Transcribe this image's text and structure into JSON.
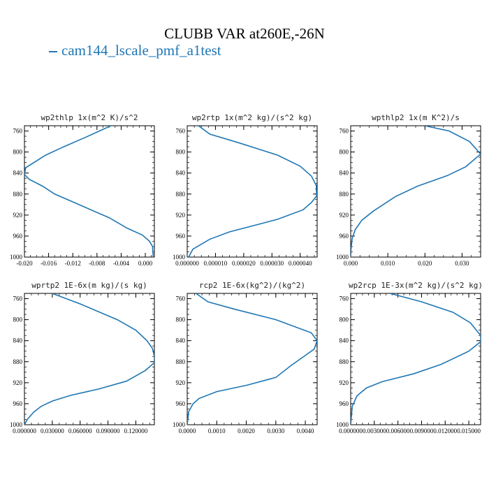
{
  "figure": {
    "title": "CLUBB VAR at260E,-26N",
    "legend_label": "cam144_lscale_pmf_a1test",
    "line_color": "#2077b4"
  },
  "chart_data": [
    {
      "type": "line",
      "title": "wp2thlp  1x(m^2 K)/s^2",
      "xlim": [
        -0.02,
        0.0015
      ],
      "ylim": [
        1000,
        750
      ],
      "xticks": [
        -0.02,
        -0.016,
        -0.012,
        -0.008,
        -0.004,
        0.0
      ],
      "xtick_labels": [
        "-0.020",
        "-0.016",
        "-0.012",
        "-0.008",
        "-0.004",
        "0.000"
      ],
      "yticks": [
        760,
        800,
        840,
        880,
        920,
        960,
        1000
      ],
      "ytick_labels": [
        "760",
        "800",
        "840",
        "880",
        "920",
        "960",
        "1000"
      ],
      "x": [
        -0.0057,
        -0.0095,
        -0.0135,
        -0.0165,
        -0.0198,
        -0.02,
        -0.0192,
        -0.017,
        -0.015,
        -0.012,
        -0.006,
        -0.003,
        -0.0005,
        0.0007,
        0.0012,
        0.0013
      ],
      "y": [
        750,
        770,
        790,
        806,
        830,
        843,
        852,
        865,
        880,
        895,
        925,
        945,
        958,
        970,
        980,
        1000
      ]
    },
    {
      "type": "line",
      "title": "wp2rtp  1x(m^2 kg)/(s^2 kg)",
      "xlim": [
        0.0,
        4.6e-05
      ],
      "ylim": [
        1000,
        750
      ],
      "xticks": [
        0.0,
        1e-05,
        2e-05,
        3e-05,
        4e-05
      ],
      "xtick_labels": [
        "0.000000",
        "0.000010",
        "0.000020",
        "0.000030",
        "0.000040"
      ],
      "yticks": [
        760,
        800,
        840,
        880,
        920,
        960,
        1000
      ],
      "ytick_labels": [
        "760",
        "800",
        "840",
        "880",
        "920",
        "960",
        "1000"
      ],
      "x": [
        4e-06,
        8e-06,
        1.8e-05,
        3.2e-05,
        4e-05,
        4.4e-05,
        4.57e-05,
        4.58e-05,
        4.4e-05,
        4.1e-05,
        3.2e-05,
        2.5e-05,
        1.5e-05,
        8e-06,
        2e-06,
        5e-07
      ],
      "y": [
        750,
        766,
        782,
        806,
        827,
        846,
        864,
        884,
        896,
        910,
        928,
        938,
        952,
        966,
        985,
        1000
      ]
    },
    {
      "type": "line",
      "title": "wpthlp2  1x(m K^2)/s",
      "xlim": [
        0.0,
        0.035
      ],
      "ylim": [
        1000,
        750
      ],
      "xticks": [
        0.0,
        0.01,
        0.02,
        0.03
      ],
      "xtick_labels": [
        "0.000",
        "0.010",
        "0.020",
        "0.030"
      ],
      "yticks": [
        760,
        800,
        840,
        880,
        920,
        960,
        1000
      ],
      "ytick_labels": [
        "760",
        "800",
        "840",
        "880",
        "920",
        "960",
        "1000"
      ],
      "x": [
        0.02,
        0.0265,
        0.032,
        0.035,
        0.031,
        0.026,
        0.018,
        0.012,
        0.006,
        0.003,
        0.0012,
        0.0004,
        0.0001,
        0.0
      ],
      "y": [
        750,
        760,
        780,
        804,
        828,
        845,
        865,
        885,
        913,
        930,
        948,
        965,
        985,
        1000
      ]
    },
    {
      "type": "line",
      "title": "wprtp2  1E-6x(m kg)/(s kg)",
      "xlim": [
        0.0,
        0.14
      ],
      "ylim": [
        1000,
        750
      ],
      "xticks": [
        0.0,
        0.03,
        0.06,
        0.09,
        0.12
      ],
      "xtick_labels": [
        "0.000000",
        "0.030000",
        "0.060000",
        "0.090000",
        "0.120000"
      ],
      "yticks": [
        760,
        800,
        840,
        880,
        920,
        960,
        1000
      ],
      "ytick_labels": [
        "760",
        "800",
        "840",
        "880",
        "920",
        "960",
        "1000"
      ],
      "x": [
        0.03,
        0.06,
        0.1,
        0.12,
        0.132,
        0.138,
        0.14,
        0.14,
        0.13,
        0.11,
        0.08,
        0.05,
        0.03,
        0.018,
        0.01,
        0.003,
        0.0
      ],
      "y": [
        750,
        770,
        800,
        820,
        840,
        855,
        870,
        882,
        897,
        917,
        932,
        944,
        955,
        965,
        976,
        990,
        1000
      ]
    },
    {
      "type": "line",
      "title": "rcp2  1E-6x(kg^2)/(kg^2)",
      "xlim": [
        0.0,
        0.0044
      ],
      "ylim": [
        1000,
        750
      ],
      "xticks": [
        0.0,
        0.001,
        0.002,
        0.003,
        0.004
      ],
      "xtick_labels": [
        "0.0000",
        "0.0010",
        "0.0020",
        "0.0030",
        "0.0040"
      ],
      "yticks": [
        760,
        800,
        840,
        880,
        920,
        960,
        1000
      ],
      "ytick_labels": [
        "760",
        "800",
        "840",
        "880",
        "920",
        "960",
        "1000"
      ],
      "x": [
        0.0003,
        0.0007,
        0.0016,
        0.003,
        0.0042,
        0.0044,
        0.0043,
        0.004,
        0.0035,
        0.003,
        0.002,
        0.001,
        0.0004,
        0.0002,
        5e-05,
        0.0
      ],
      "y": [
        750,
        766,
        780,
        800,
        825,
        840,
        856,
        868,
        888,
        910,
        925,
        937,
        950,
        960,
        975,
        1000
      ]
    },
    {
      "type": "line",
      "title": "wp2rcp  1E-3x(m^2 kg)/(s^2 kg)",
      "xlim": [
        0.0,
        0.0165
      ],
      "ylim": [
        1000,
        750
      ],
      "xticks": [
        0.0,
        0.003,
        0.006,
        0.009,
        0.012,
        0.015
      ],
      "xtick_labels": [
        "0.000000",
        "0.003000",
        "0.006000",
        "0.009000",
        "0.012000",
        "0.015000"
      ],
      "yticks": [
        760,
        800,
        840,
        880,
        920,
        960,
        1000
      ],
      "ytick_labels": [
        "760",
        "800",
        "840",
        "880",
        "920",
        "960",
        "1000"
      ],
      "x": [
        0.005,
        0.009,
        0.013,
        0.0152,
        0.0165,
        0.0165,
        0.015,
        0.0115,
        0.008,
        0.004,
        0.002,
        0.0008,
        0.0002,
        0.0
      ],
      "y": [
        750,
        766,
        786,
        806,
        830,
        842,
        860,
        885,
        903,
        918,
        930,
        945,
        965,
        1000
      ]
    }
  ]
}
